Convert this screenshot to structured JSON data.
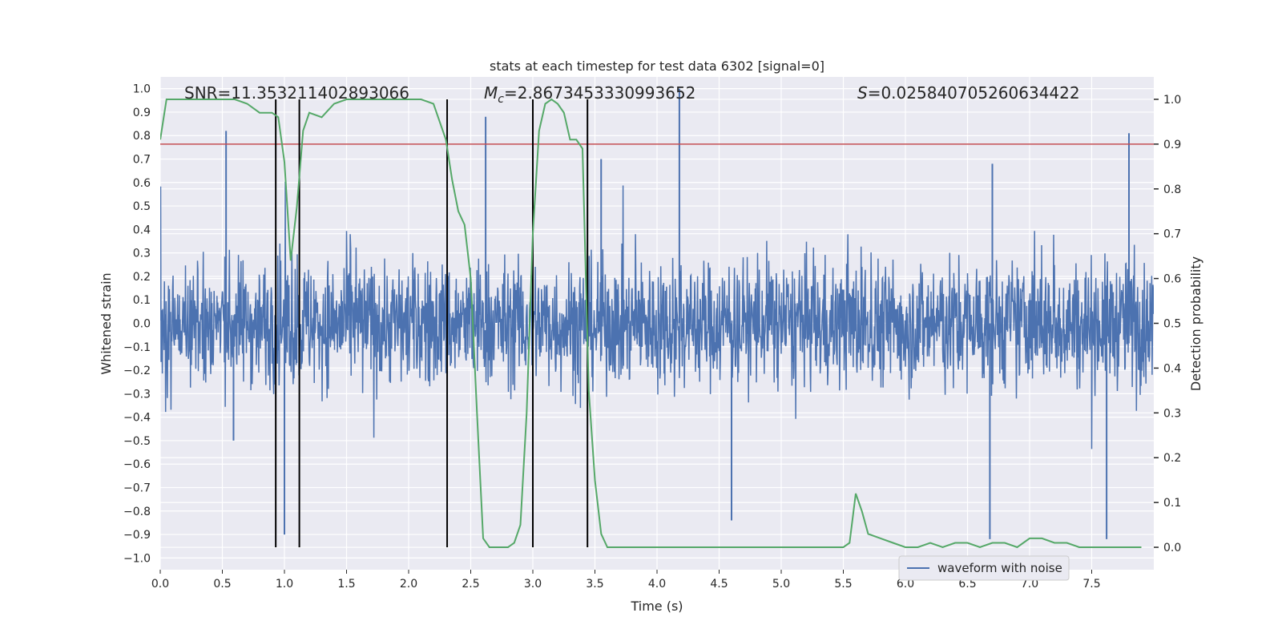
{
  "chart_data": {
    "type": "line",
    "title": "stats at each timestep for test data 6302 [signal=0]",
    "xlabel": "Time (s)",
    "ylabel_left": "Whitened strain",
    "ylabel_right": "Detection probability",
    "xlim": [
      0,
      8
    ],
    "ylim_left": [
      -1.05,
      1.05
    ],
    "ylim_right": [
      -0.05,
      1.05
    ],
    "xticks": [
      "0.0",
      "0.5",
      "1.0",
      "1.5",
      "2.0",
      "2.5",
      "3.0",
      "3.5",
      "4.0",
      "4.5",
      "5.0",
      "5.5",
      "6.0",
      "6.5",
      "7.0",
      "7.5"
    ],
    "yticks_left": [
      "1.0",
      "0.9",
      "0.8",
      "0.7",
      "0.6",
      "0.5",
      "0.4",
      "0.3",
      "0.2",
      "0.1",
      "0.0",
      "−0.1",
      "−0.2",
      "−0.3",
      "−0.4",
      "−0.5",
      "−0.6",
      "−0.7",
      "−0.8",
      "−0.9",
      "−1.0"
    ],
    "yticks_right": [
      "1.0",
      "0.9",
      "0.8",
      "0.7",
      "0.6",
      "0.5",
      "0.4",
      "0.3",
      "0.2",
      "0.1",
      "0.0"
    ],
    "annotations": {
      "snr": "SNR=11.353211402893066",
      "mc_symbol": "M",
      "mc_sub": "c",
      "mc_value": "=2.8673453330993652",
      "s_symbol": "S",
      "s_value": "=0.025840705260634422"
    },
    "threshold": {
      "axis": "right",
      "value": 0.9,
      "color": "#c44e52"
    },
    "vertical_markers": [
      0.93,
      1.12,
      2.31,
      3.0,
      3.44
    ],
    "legend": {
      "entries": [
        "waveform with noise"
      ],
      "loc": "lower right"
    },
    "series": [
      {
        "name": "waveform with noise",
        "axis": "left",
        "color": "#4c72b0",
        "kind": "noise",
        "typical_peak": 0.45,
        "spikes": [
          [
            0.53,
            0.82
          ],
          [
            0.59,
            -0.5
          ],
          [
            1.0,
            -0.9
          ],
          [
            2.62,
            0.88
          ],
          [
            3.55,
            0.7
          ],
          [
            4.18,
            1.0
          ],
          [
            4.6,
            -0.84
          ],
          [
            6.68,
            -0.92
          ],
          [
            7.62,
            -0.92
          ],
          [
            7.8,
            0.81
          ],
          [
            6.7,
            0.68
          ]
        ]
      },
      {
        "name": "",
        "axis": "right",
        "color": "#55a868",
        "x": [
          0.0,
          0.05,
          0.1,
          0.2,
          0.3,
          0.4,
          0.5,
          0.6,
          0.7,
          0.8,
          0.9,
          0.95,
          1.0,
          1.05,
          1.1,
          1.15,
          1.2,
          1.3,
          1.4,
          1.5,
          1.6,
          1.8,
          2.0,
          2.1,
          2.2,
          2.3,
          2.35,
          2.4,
          2.45,
          2.5,
          2.55,
          2.6,
          2.65,
          2.7,
          2.8,
          2.85,
          2.9,
          2.95,
          3.0,
          3.05,
          3.1,
          3.15,
          3.2,
          3.25,
          3.3,
          3.35,
          3.4,
          3.45,
          3.5,
          3.55,
          3.6,
          3.7,
          3.8,
          3.9,
          4.0,
          4.5,
          5.0,
          5.25,
          5.4,
          5.5,
          5.55,
          5.6,
          5.65,
          5.7,
          5.8,
          5.9,
          6.0,
          6.1,
          6.2,
          6.3,
          6.4,
          6.5,
          6.6,
          6.7,
          6.8,
          6.9,
          7.0,
          7.05,
          7.1,
          7.2,
          7.3,
          7.4,
          7.5,
          7.6,
          7.7,
          7.8,
          7.9
        ],
        "y": [
          0.91,
          1.0,
          1.0,
          1.0,
          1.0,
          1.0,
          1.0,
          1.0,
          0.99,
          0.97,
          0.97,
          0.96,
          0.86,
          0.64,
          0.76,
          0.93,
          0.97,
          0.96,
          0.99,
          1.0,
          1.0,
          1.0,
          1.0,
          1.0,
          0.99,
          0.91,
          0.82,
          0.75,
          0.72,
          0.6,
          0.3,
          0.02,
          0.0,
          0.0,
          0.0,
          0.01,
          0.05,
          0.3,
          0.7,
          0.93,
          0.99,
          1.0,
          0.99,
          0.97,
          0.91,
          0.91,
          0.89,
          0.35,
          0.15,
          0.03,
          0.0,
          0.0,
          0.0,
          0.0,
          0.0,
          0.0,
          0.0,
          0.0,
          0.0,
          0.0,
          0.01,
          0.12,
          0.08,
          0.03,
          0.02,
          0.01,
          0.0,
          0.0,
          0.01,
          0.0,
          0.01,
          0.01,
          0.0,
          0.01,
          0.01,
          0.0,
          0.02,
          0.02,
          0.02,
          0.01,
          0.01,
          0.0,
          0.0,
          0.0,
          0.0,
          0.0,
          0.0
        ]
      }
    ]
  }
}
